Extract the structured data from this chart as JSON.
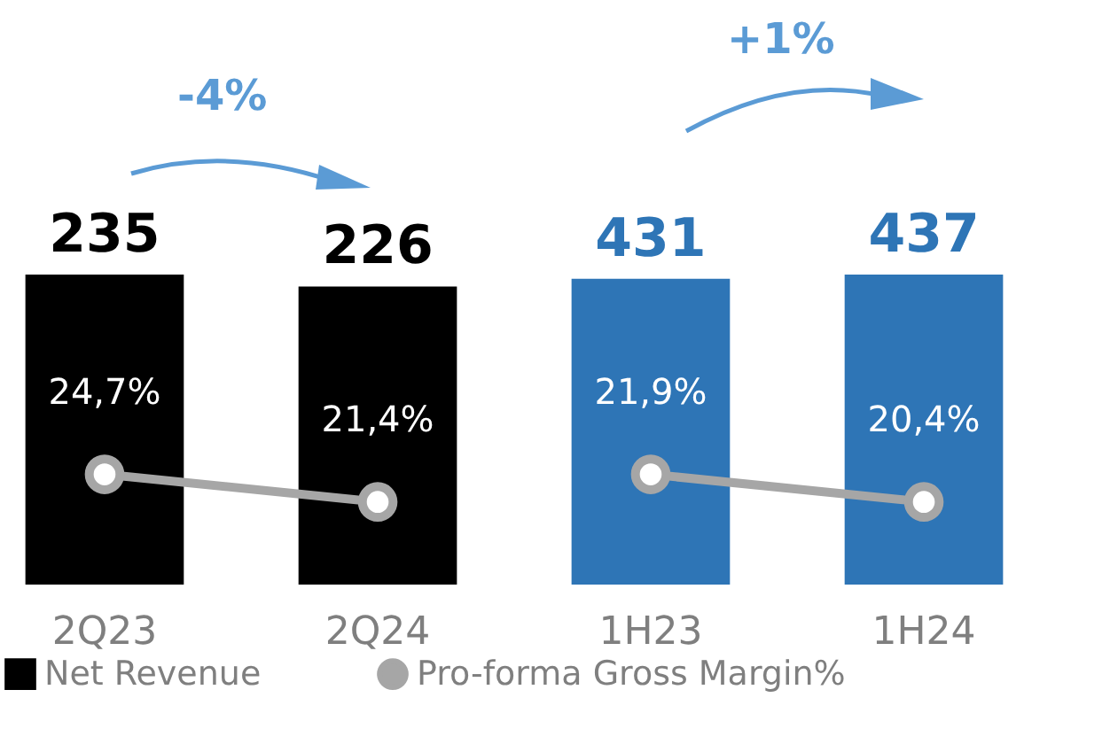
{
  "chart_data": [
    {
      "type": "bar",
      "categories": [
        "2Q23",
        "2Q24"
      ],
      "annotations": [
        "-4%"
      ],
      "legend": "bottom",
      "tick_labels": "x",
      "series": [
        {
          "name": "Net Revenue",
          "color": "#000000",
          "values": [
            235,
            226
          ],
          "value_labels": [
            "235",
            "226"
          ]
        },
        {
          "name": "Pro-forma Gross Margin%",
          "type": "line",
          "axis": "y2",
          "marker": "circle",
          "color": "#a6a6a6",
          "values": [
            24.7,
            21.4
          ],
          "value_labels": [
            "24,7%",
            "21,4%"
          ]
        }
      ]
    },
    {
      "type": "bar",
      "categories": [
        "1H23",
        "1H24"
      ],
      "annotations": [
        "+1%"
      ],
      "tick_labels": "x",
      "series": [
        {
          "color": "#2e75b6",
          "values": [
            431,
            437
          ],
          "value_labels": [
            "431",
            "437"
          ]
        },
        {
          "type": "line",
          "axis": "y2",
          "marker": "circle",
          "color": "#a6a6a6",
          "values": [
            21.9,
            20.4
          ],
          "value_labels": [
            "21,9%",
            "20,4%"
          ]
        }
      ]
    }
  ]
}
